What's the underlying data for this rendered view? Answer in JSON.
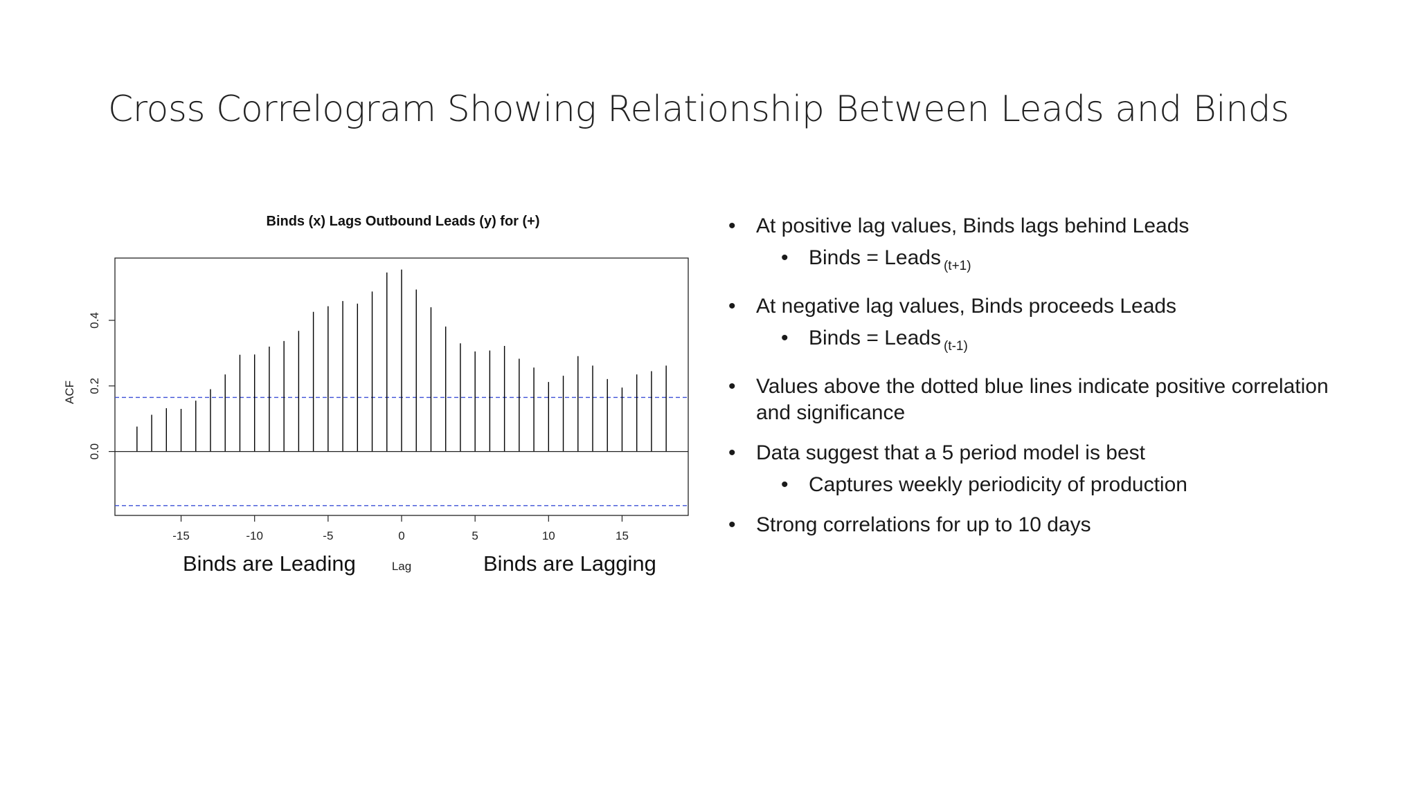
{
  "slide": {
    "title": "Cross Correlogram Showing Relationship Between Leads and Binds"
  },
  "chart_notes": {
    "leading": "Binds are Leading",
    "lagging": "Binds are Lagging"
  },
  "bullets": [
    {
      "level": 1,
      "text": "At positive lag values, Binds lags behind Leads"
    },
    {
      "level": 2,
      "text": "Binds = Leads",
      "sub": "(t+1)"
    },
    {
      "level": 1,
      "text": "At negative lag values, Binds proceeds Leads"
    },
    {
      "level": 2,
      "text": "Binds = Leads",
      "sub": "(t-1)"
    },
    {
      "level": 1,
      "text": "Values above the dotted blue lines indicate positive correlation and significance"
    },
    {
      "level": 1,
      "text": "Data suggest that a 5 period model is best"
    },
    {
      "level": 2,
      "text": "Captures weekly periodicity of production"
    },
    {
      "level": 1,
      "text": "Strong correlations for up to 10 days"
    }
  ],
  "chart_data": {
    "type": "bar",
    "title": "Binds (x) Lags Outbound Leads (y) for (+)",
    "xlabel": "Lag",
    "ylabel": "ACF",
    "x": [
      -18,
      -17,
      -16,
      -15,
      -14,
      -13,
      -12,
      -11,
      -10,
      -9,
      -8,
      -7,
      -6,
      -5,
      -4,
      -3,
      -2,
      -1,
      0,
      1,
      2,
      3,
      4,
      5,
      6,
      7,
      8,
      9,
      10,
      11,
      12,
      13,
      14,
      15,
      16,
      17,
      18
    ],
    "values": [
      0.076,
      0.112,
      0.132,
      0.13,
      0.155,
      0.19,
      0.235,
      0.295,
      0.296,
      0.32,
      0.337,
      0.368,
      0.426,
      0.443,
      0.459,
      0.451,
      0.488,
      0.546,
      0.555,
      0.494,
      0.44,
      0.381,
      0.33,
      0.305,
      0.308,
      0.322,
      0.283,
      0.256,
      0.212,
      0.231,
      0.291,
      0.262,
      0.221,
      0.195,
      0.235,
      0.245,
      0.262
    ],
    "xticks": [
      -15,
      -10,
      -5,
      0,
      5,
      10,
      15
    ],
    "yticks": [
      0.0,
      0.2,
      0.4
    ],
    "xlim": [
      -19.5,
      19.5
    ],
    "ylim": [
      -0.195,
      0.59
    ],
    "confidence_bound": 0.165,
    "colors": {
      "bars": "#000000",
      "confidence": "#3b4fd6"
    }
  }
}
